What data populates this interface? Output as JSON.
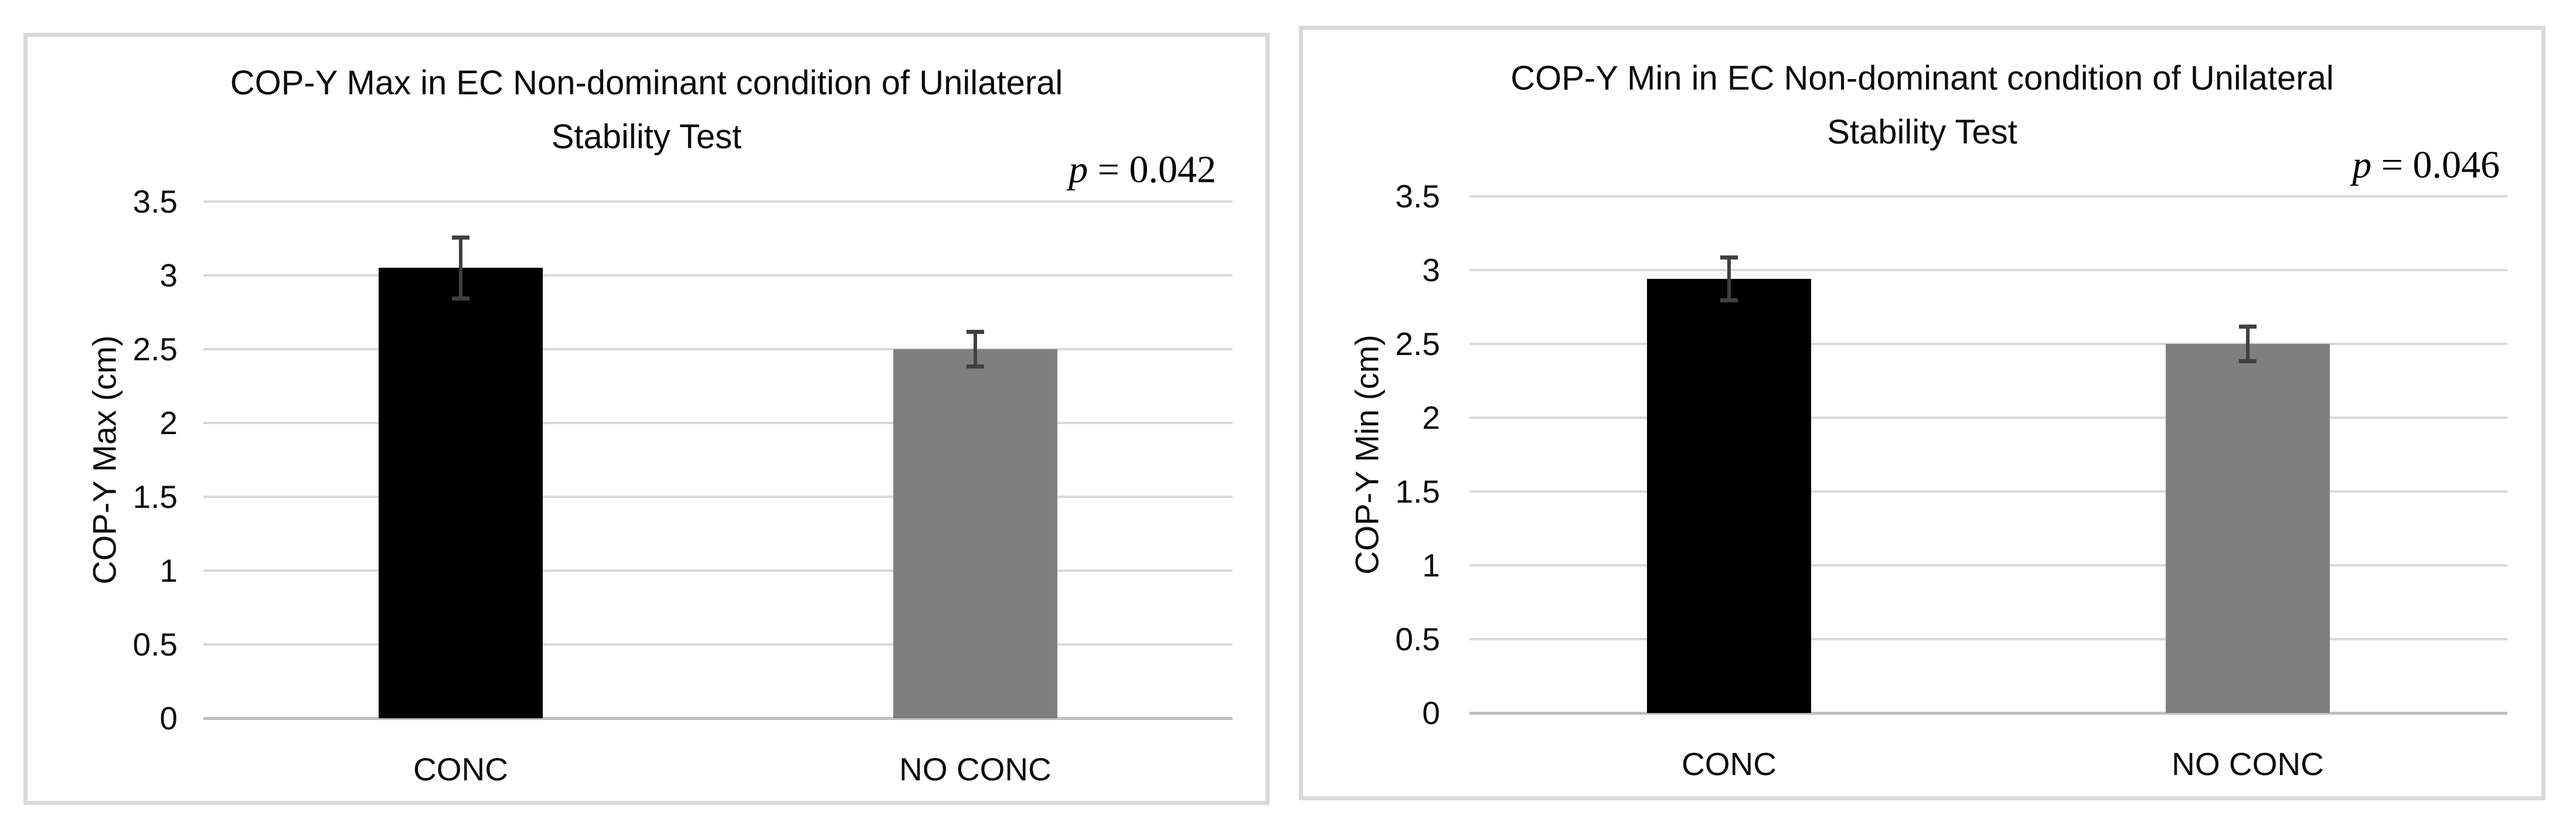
{
  "page": {
    "background": "#ffffff"
  },
  "chart_data": [
    {
      "type": "bar",
      "title": "COP-Y Max in EC Non-dominant condition of Unilateral Stability Test",
      "title_lines": [
        "COP-Y Max in EC Non-dominant condition of Unilateral",
        "Stability Test"
      ],
      "annotation": {
        "italic": "p",
        "text": " = 0.042"
      },
      "ylabel": "COP-Y Max (cm)",
      "xlabel": "",
      "categories": [
        "CONC",
        "NO CONC"
      ],
      "values": [
        3.05,
        2.5
      ],
      "errors": [
        0.22,
        0.13
      ],
      "bar_colors": [
        "#000000",
        "#7f7f7f"
      ],
      "error_bar_color": "#404040",
      "ylim": [
        0,
        3.5
      ],
      "ytick_step": 0.5,
      "yticks": [
        "0",
        "0.5",
        "1",
        "1.5",
        "2",
        "2.5",
        "3",
        "3.5"
      ],
      "grid": true,
      "legend": "none"
    },
    {
      "type": "bar",
      "title": "COP-Y Min in EC Non-dominant condition of Unilateral Stability Test",
      "title_lines": [
        "COP-Y Min in EC Non-dominant condition of Unilateral",
        "Stability Test"
      ],
      "annotation": {
        "italic": "p",
        "text": " = 0.046"
      },
      "ylabel": "COP-Y Min (cm)",
      "xlabel": "",
      "categories": [
        "CONC",
        "NO CONC"
      ],
      "values": [
        2.94,
        2.5
      ],
      "errors": [
        0.16,
        0.13
      ],
      "bar_colors": [
        "#000000",
        "#7f7f7f"
      ],
      "error_bar_color": "#404040",
      "ylim": [
        0,
        3.5
      ],
      "ytick_step": 0.5,
      "yticks": [
        "0",
        "0.5",
        "1",
        "1.5",
        "2",
        "2.5",
        "3",
        "3.5"
      ],
      "grid": true,
      "legend": "none"
    }
  ]
}
